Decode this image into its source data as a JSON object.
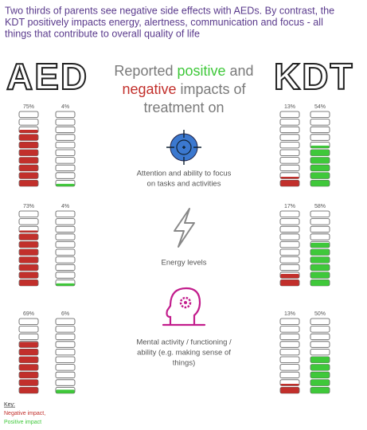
{
  "header": {
    "lines": [
      "Two thirds of parents see negative side effects with AEDs. By contrast, the",
      "KDT positively impacts energy, alertness, communication and focus - all",
      "things that contribute to overall quality of life"
    ]
  },
  "left_heading": "AED",
  "right_heading": "KDT",
  "center_title": {
    "lines": [
      [
        "Reported ",
        "positive",
        " and"
      ],
      [
        "negative",
        " impacts of"
      ],
      [
        "treatment on"
      ]
    ]
  },
  "negative_color": "#c22f2b",
  "positive_color": "#3fc83a",
  "rows": [
    {
      "label": [
        "Attention and ability to focus",
        "on tasks and activities"
      ],
      "aed": {
        "negative": {
          "value": 75,
          "label": "75%"
        },
        "positive": {
          "value": 4,
          "label": "4%"
        }
      },
      "kdt": {
        "negative": {
          "value": 13,
          "label": "13%"
        },
        "positive": {
          "value": 54,
          "label": "54%"
        }
      }
    },
    {
      "label": [
        "Energy levels"
      ],
      "aed": {
        "negative": {
          "value": 73,
          "label": "73%"
        },
        "positive": {
          "value": 4,
          "label": "4%"
        }
      },
      "kdt": {
        "negative": {
          "value": 17,
          "label": "17%"
        },
        "positive": {
          "value": 58,
          "label": "58%"
        }
      }
    },
    {
      "label": [
        "Mental activity / functioning /",
        "ability (e.g. making sense of",
        "things)"
      ],
      "aed": {
        "negative": {
          "value": 69,
          "label": "69%"
        },
        "positive": {
          "value": 6,
          "label": "6%"
        }
      },
      "kdt": {
        "negative": {
          "value": 13,
          "label": "13%"
        },
        "positive": {
          "value": 50,
          "label": "50%"
        }
      }
    }
  ],
  "key": {
    "title": "Key:",
    "negative": "Negative impact,",
    "positive": "Positive impact"
  }
}
